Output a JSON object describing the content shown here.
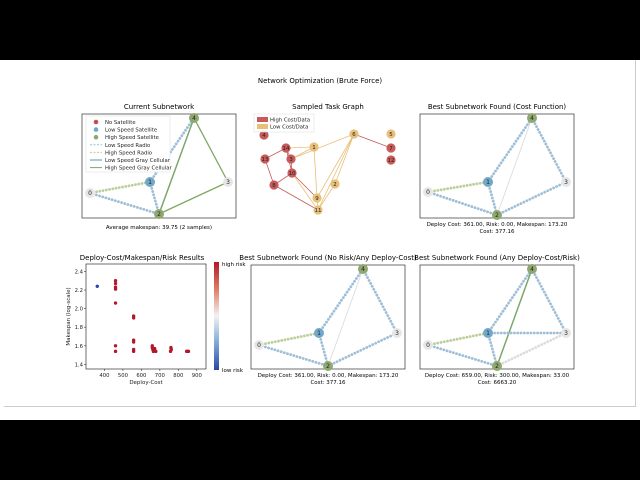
{
  "figure": {
    "title": "Network Optimization (Brute Force)"
  },
  "colors": {
    "no_satellite": "#c0504d",
    "low_speed_satellite": "#6fa8c8",
    "high_speed_satellite": "#8fa870",
    "low_speed_radio": "#9fbfd8",
    "high_speed_radio": "#bccf9a",
    "low_speed_gray_cellular": "#4f99bb",
    "high_speed_gray_cellular": "#7fa860",
    "high_cost": "#c85a5a",
    "low_cost": "#e8c07a",
    "node_gray": "#e6e6e6"
  },
  "panels": {
    "current": {
      "title": "Current Subnetwork",
      "caption": "Average makespan: 39.75 (2 samples)",
      "legend": [
        "No Satellite",
        "Low Speed Satellite",
        "High Speed Satellite",
        "Low Speed Radio",
        "High Speed Radio",
        "Low Speed Gray Cellular",
        "High Speed Gray Cellular"
      ],
      "node_labels": [
        "0",
        "1",
        "2",
        "3",
        "4"
      ]
    },
    "task_graph": {
      "title": "Sampled Task Graph",
      "legend": [
        "High Cost/Data",
        "Low Cost/Data"
      ],
      "node_labels": [
        "1",
        "2",
        "3",
        "4",
        "5",
        "6",
        "7",
        "8",
        "9",
        "10",
        "11",
        "12",
        "13",
        "14",
        "0"
      ]
    },
    "best_cost": {
      "title": "Best Subnetwork Found (Cost Function)",
      "caption_line1": "Deploy Cost: 361.00, Risk: 0.00, Makespan: 173.20",
      "caption_line2": "Cost: 377.16",
      "node_labels": [
        "0",
        "1",
        "2",
        "3",
        "4"
      ]
    },
    "results": {
      "title": "Deploy-Cost/Makespan/Risk Results",
      "colorbar_top": "high risk",
      "colorbar_bottom": "low risk"
    },
    "best_norisk": {
      "title": "Best Subnetwork Found (No Risk/Any Deploy-Cost)",
      "caption_line1": "Deploy Cost: 361.00, Risk: 0.00, Makespan: 173.20",
      "caption_line2": "Cost: 377.16",
      "node_labels": [
        "0",
        "1",
        "2",
        "3",
        "4"
      ]
    },
    "best_any": {
      "title": "Best Subnetwork Found (Any Deploy-Cost/Risk)",
      "caption_line1": "Deploy Cost: 659.00, Risk: 300.00, Makespan: 33.00",
      "caption_line2": "Cost: 6663.20",
      "node_labels": [
        "0",
        "1",
        "2",
        "3",
        "4"
      ]
    }
  },
  "chart_data": {
    "type": "scatter",
    "title": "Deploy-Cost/Makespan/Risk Results",
    "xlabel": "Deploy-Cost",
    "ylabel": "Makespan (log-scale)",
    "xlim": [
      300,
      950
    ],
    "ylim": [
      1.35,
      2.48
    ],
    "xticks": [
      "400",
      "500",
      "600",
      "700",
      "800",
      "900"
    ],
    "yticks": [
      "1.4",
      "1.6",
      "1.8",
      "2.0",
      "2.2",
      "2.4"
    ],
    "x_tick_values": [
      400,
      500,
      600,
      700,
      800,
      900
    ],
    "y_tick_values": [
      1.4,
      1.6,
      1.8,
      2.0,
      2.2,
      2.4
    ],
    "grid": false,
    "colorbar": {
      "top": "high risk",
      "bottom": "low risk"
    },
    "points": [
      {
        "x": 361,
        "y": 2.24,
        "risk": "low"
      },
      {
        "x": 460,
        "y": 2.3,
        "risk": "high"
      },
      {
        "x": 460,
        "y": 2.27,
        "risk": "high"
      },
      {
        "x": 460,
        "y": 2.23,
        "risk": "high"
      },
      {
        "x": 460,
        "y": 2.21,
        "risk": "high"
      },
      {
        "x": 460,
        "y": 2.06,
        "risk": "high"
      },
      {
        "x": 460,
        "y": 1.6,
        "risk": "high"
      },
      {
        "x": 460,
        "y": 1.54,
        "risk": "high"
      },
      {
        "x": 558,
        "y": 1.92,
        "risk": "high"
      },
      {
        "x": 558,
        "y": 1.9,
        "risk": "high"
      },
      {
        "x": 558,
        "y": 1.66,
        "risk": "high"
      },
      {
        "x": 558,
        "y": 1.64,
        "risk": "high"
      },
      {
        "x": 558,
        "y": 1.56,
        "risk": "high"
      },
      {
        "x": 558,
        "y": 1.54,
        "risk": "high"
      },
      {
        "x": 659,
        "y": 1.6,
        "risk": "high"
      },
      {
        "x": 659,
        "y": 1.58,
        "risk": "high"
      },
      {
        "x": 662,
        "y": 1.56,
        "risk": "high"
      },
      {
        "x": 665,
        "y": 1.54,
        "risk": "high"
      },
      {
        "x": 668,
        "y": 1.55,
        "risk": "high"
      },
      {
        "x": 672,
        "y": 1.57,
        "risk": "high"
      },
      {
        "x": 678,
        "y": 1.54,
        "risk": "high"
      },
      {
        "x": 760,
        "y": 1.58,
        "risk": "high"
      },
      {
        "x": 762,
        "y": 1.56,
        "risk": "high"
      },
      {
        "x": 758,
        "y": 1.54,
        "risk": "high"
      },
      {
        "x": 845,
        "y": 1.54,
        "risk": "high"
      },
      {
        "x": 850,
        "y": 1.54,
        "risk": "high"
      },
      {
        "x": 855,
        "y": 1.54,
        "risk": "high"
      }
    ]
  }
}
